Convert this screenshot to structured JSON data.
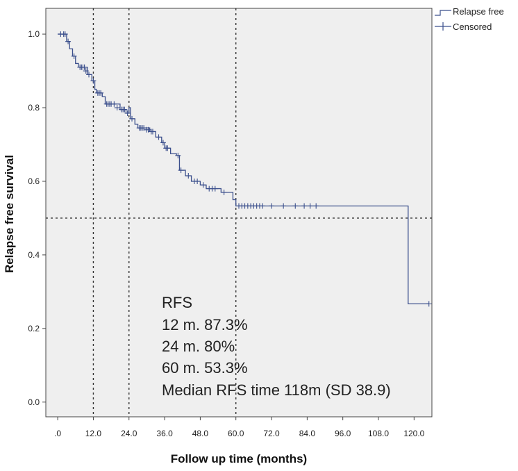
{
  "chart_data": {
    "type": "line",
    "subtype": "kaplan-meier",
    "title": "",
    "xlabel": "Follow up time (months)",
    "ylabel": "Relapse free survival",
    "xlim": [
      -4,
      126
    ],
    "ylim": [
      -0.04,
      1.07
    ],
    "x_ticks": [
      0,
      12,
      24,
      36,
      48,
      60,
      72,
      84,
      96,
      108,
      120
    ],
    "x_tick_labels": [
      ".0",
      "12.0",
      "24.0",
      "36.0",
      "48.0",
      "60.0",
      "72.0",
      "84.0",
      "96.0",
      "108.0",
      "120.0"
    ],
    "y_ticks": [
      0,
      0.2,
      0.4,
      0.6,
      0.8,
      1.0
    ],
    "y_tick_labels": [
      "0.0",
      "0.2",
      "0.4",
      "0.6",
      "0.8",
      "1.0"
    ],
    "grid": false,
    "reference_lines": {
      "vertical": [
        12,
        24,
        60
      ],
      "horizontal": [
        0.5
      ]
    },
    "legend": {
      "position": "top-right",
      "entries": [
        {
          "label": "Relapse free",
          "marker": "step"
        },
        {
          "label": "Censored",
          "marker": "plus"
        }
      ]
    },
    "series": [
      {
        "name": "Relapse free",
        "color": "#3b4f8c",
        "steps": [
          [
            0,
            1.0
          ],
          [
            3,
            0.98
          ],
          [
            4,
            0.96
          ],
          [
            5,
            0.94
          ],
          [
            6,
            0.92
          ],
          [
            7,
            0.91
          ],
          [
            10,
            0.89
          ],
          [
            11.5,
            0.873
          ],
          [
            12.5,
            0.85
          ],
          [
            13,
            0.84
          ],
          [
            15,
            0.83
          ],
          [
            16,
            0.81
          ],
          [
            21,
            0.795
          ],
          [
            23,
            0.785
          ],
          [
            24,
            0.8
          ],
          [
            24.5,
            0.77
          ],
          [
            26,
            0.755
          ],
          [
            27,
            0.745
          ],
          [
            31,
            0.735
          ],
          [
            33,
            0.72
          ],
          [
            35,
            0.705
          ],
          [
            36,
            0.69
          ],
          [
            38,
            0.675
          ],
          [
            40,
            0.67
          ],
          [
            41,
            0.63
          ],
          [
            43,
            0.615
          ],
          [
            45,
            0.6
          ],
          [
            48,
            0.59
          ],
          [
            50,
            0.58
          ],
          [
            55,
            0.57
          ],
          [
            59,
            0.55
          ],
          [
            60,
            0.533
          ],
          [
            118,
            0.267
          ],
          [
            125,
            0.267
          ]
        ],
        "censored": [
          [
            1,
            1.0
          ],
          [
            2,
            1.0
          ],
          [
            2.5,
            1.0
          ],
          [
            3.5,
            0.98
          ],
          [
            5.5,
            0.94
          ],
          [
            7.5,
            0.91
          ],
          [
            8,
            0.91
          ],
          [
            8.5,
            0.91
          ],
          [
            9,
            0.91
          ],
          [
            9.5,
            0.9
          ],
          [
            10.5,
            0.89
          ],
          [
            12,
            0.873
          ],
          [
            13.5,
            0.84
          ],
          [
            14,
            0.84
          ],
          [
            14.5,
            0.84
          ],
          [
            16.5,
            0.81
          ],
          [
            17,
            0.81
          ],
          [
            17.5,
            0.81
          ],
          [
            18,
            0.81
          ],
          [
            19,
            0.81
          ],
          [
            20,
            0.8
          ],
          [
            21.5,
            0.795
          ],
          [
            22,
            0.795
          ],
          [
            22.5,
            0.795
          ],
          [
            23.5,
            0.785
          ],
          [
            25,
            0.77
          ],
          [
            27.5,
            0.745
          ],
          [
            28,
            0.745
          ],
          [
            28.5,
            0.745
          ],
          [
            29,
            0.745
          ],
          [
            30,
            0.74
          ],
          [
            30.5,
            0.74
          ],
          [
            31.5,
            0.735
          ],
          [
            32,
            0.735
          ],
          [
            34,
            0.72
          ],
          [
            35.5,
            0.705
          ],
          [
            36.5,
            0.69
          ],
          [
            37,
            0.69
          ],
          [
            40.5,
            0.67
          ],
          [
            41.5,
            0.63
          ],
          [
            44,
            0.615
          ],
          [
            46,
            0.6
          ],
          [
            47,
            0.6
          ],
          [
            49,
            0.59
          ],
          [
            51,
            0.58
          ],
          [
            52,
            0.58
          ],
          [
            53,
            0.58
          ],
          [
            56,
            0.57
          ],
          [
            61,
            0.533
          ],
          [
            62,
            0.533
          ],
          [
            63,
            0.533
          ],
          [
            64,
            0.533
          ],
          [
            65,
            0.533
          ],
          [
            66,
            0.533
          ],
          [
            67,
            0.533
          ],
          [
            68,
            0.533
          ],
          [
            69,
            0.533
          ],
          [
            72,
            0.533
          ],
          [
            76,
            0.533
          ],
          [
            80,
            0.533
          ],
          [
            83,
            0.533
          ],
          [
            85,
            0.533
          ],
          [
            87,
            0.533
          ],
          [
            125,
            0.267
          ]
        ]
      }
    ],
    "annotations": [
      "RFS",
      "12 m. 87.3%",
      "24 m. 80%",
      "60 m. 53.3%",
      "Median RFS time 118m (SD 38.9)"
    ]
  }
}
